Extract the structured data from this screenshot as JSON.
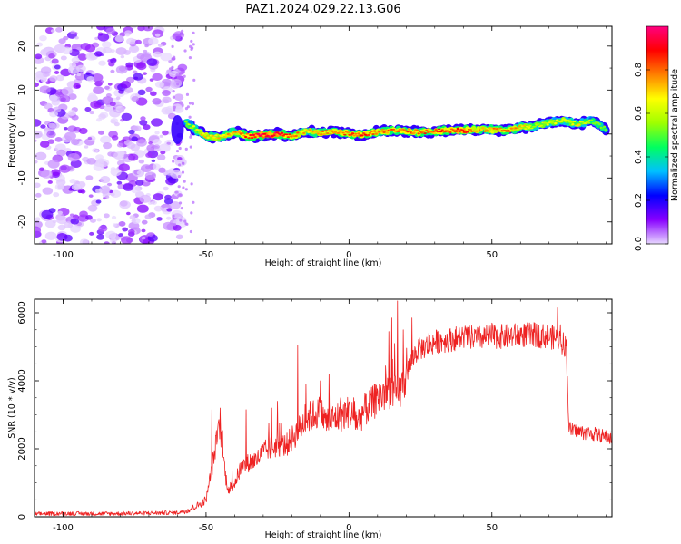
{
  "title": "PAZ1.2024.029.22.13.G06",
  "chart_data": [
    {
      "type": "heatmap",
      "title": "PAZ1.2024.029.22.13.G06",
      "xlabel": "Height of straight line (km)",
      "ylabel": "Frequency (Hz)",
      "xlim": [
        -110,
        92
      ],
      "ylim": [
        -25,
        24.5
      ],
      "xticks": [
        -100,
        -50,
        0,
        50
      ],
      "yticks": [
        -20,
        -10,
        0,
        10,
        20
      ],
      "colorbar": {
        "label": "Normalized spectral amplitude",
        "range": [
          0,
          1
        ],
        "ticks": [
          0.0,
          0.2,
          0.4,
          0.6,
          0.8
        ],
        "colormap": [
          "#e8d8ff",
          "#8800ff",
          "#0000ff",
          "#00c0ff",
          "#00ff60",
          "#a0ff00",
          "#ffff00",
          "#ff8000",
          "#ff0000",
          "#ff0080"
        ]
      },
      "noise_region_x": [
        -110,
        -58
      ],
      "track": {
        "x": [
          -57,
          -50,
          -45,
          -40,
          -35,
          -30,
          -25,
          -20,
          -15,
          -10,
          -5,
          0,
          5,
          10,
          15,
          20,
          25,
          30,
          35,
          40,
          45,
          50,
          55,
          60,
          65,
          70,
          75,
          80,
          85,
          90
        ],
        "freq": [
          2.5,
          -0.5,
          -0.8,
          0.5,
          -0.5,
          -0.3,
          0,
          -0.5,
          0.6,
          0.3,
          0.5,
          0,
          -0.2,
          0.5,
          0.8,
          0.7,
          0.4,
          0.6,
          0.8,
          0.8,
          1.0,
          1.0,
          0.8,
          1.5,
          1.8,
          2.5,
          3.0,
          2.2,
          3.0,
          1.0
        ],
        "amplitude": [
          0.55,
          0.7,
          0.7,
          0.75,
          0.85,
          0.95,
          0.95,
          0.8,
          0.7,
          0.75,
          0.8,
          0.8,
          0.85,
          0.75,
          0.8,
          0.8,
          0.8,
          0.85,
          0.85,
          0.9,
          0.75,
          0.75,
          0.8,
          0.7,
          0.6,
          0.6,
          0.65,
          0.65,
          0.55,
          0.5
        ]
      }
    },
    {
      "type": "line",
      "xlabel": "Height of straight line (km)",
      "ylabel": "SNR (10 * v/v)",
      "xlim": [
        -110,
        92
      ],
      "ylim": [
        0,
        6400
      ],
      "xticks": [
        -100,
        -50,
        0,
        50
      ],
      "yticks": [
        0,
        2000,
        4000,
        6000
      ],
      "color": "#ee2222",
      "series": [
        {
          "x": [
            -110,
            -100,
            -90,
            -80,
            -70,
            -60,
            -56,
            -52,
            -50,
            -48,
            -46,
            -45,
            -44,
            -43,
            -42,
            -41,
            -40,
            -38,
            -35,
            -32,
            -30,
            -28,
            -25,
            -22,
            -20,
            -18,
            -15,
            -12,
            -10,
            -8,
            -5,
            -2,
            0,
            3,
            5,
            8,
            10,
            12,
            14,
            15,
            16,
            17,
            18,
            20,
            23,
            25,
            28,
            30,
            35,
            40,
            45,
            50,
            55,
            60,
            65,
            70,
            73,
            75,
            76,
            77,
            78,
            80,
            85,
            90,
            92
          ],
          "y": [
            80,
            100,
            90,
            95,
            110,
            120,
            200,
            380,
            500,
            1400,
            2400,
            2600,
            1800,
            1100,
            800,
            900,
            1000,
            1400,
            1600,
            1700,
            1900,
            2000,
            2100,
            2100,
            2300,
            2500,
            2900,
            3000,
            3100,
            2800,
            2900,
            3000,
            3100,
            2800,
            3100,
            3300,
            3500,
            3600,
            3700,
            3800,
            3600,
            3600,
            3700,
            4200,
            4800,
            4950,
            5050,
            5150,
            5200,
            5300,
            5250,
            5300,
            5300,
            5350,
            5350,
            5300,
            5250,
            5100,
            5000,
            2600,
            2550,
            2500,
            2450,
            2350,
            2300
          ],
          "spikes": [
            [
              -48,
              3150
            ],
            [
              -45,
              3200
            ],
            [
              -36,
              3150
            ],
            [
              -27,
              3200
            ],
            [
              -25,
              3400
            ],
            [
              -18,
              5050
            ],
            [
              -15,
              3900
            ],
            [
              -10,
              4000
            ],
            [
              -7,
              4200
            ],
            [
              -3,
              3500
            ],
            [
              2,
              3400
            ],
            [
              6,
              3600
            ],
            [
              10,
              3700
            ],
            [
              12,
              3900
            ],
            [
              14,
              5450
            ],
            [
              15,
              5850
            ],
            [
              16,
              5100
            ],
            [
              17,
              6350
            ],
            [
              19,
              5500
            ],
            [
              22,
              5850
            ],
            [
              28,
              5400
            ],
            [
              50,
              5700
            ],
            [
              65,
              5700
            ],
            [
              73,
              6150
            ],
            [
              74,
              5650
            ]
          ]
        }
      ]
    }
  ]
}
